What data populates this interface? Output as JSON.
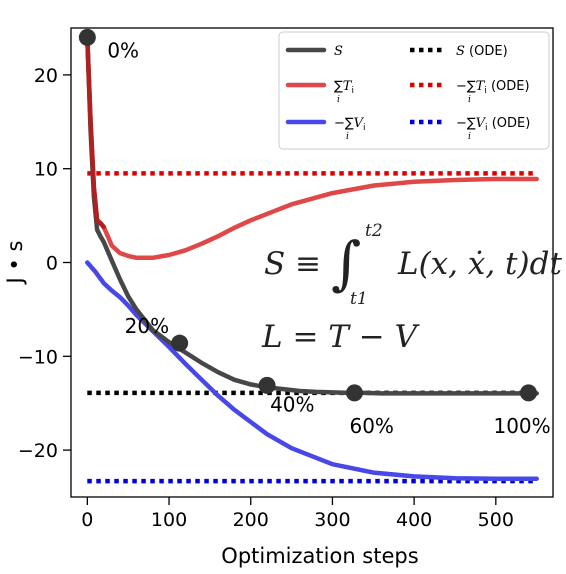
{
  "chart_data": {
    "type": "line",
    "xlabel": "Optimization steps",
    "ylabel": "J • s",
    "xlim": [
      -20,
      570
    ],
    "ylim": [
      -25,
      25
    ],
    "xticks": [
      0,
      100,
      200,
      300,
      400,
      500
    ],
    "yticks": [
      -20,
      -10,
      0,
      10,
      20
    ],
    "xtick_labels": [
      "0",
      "100",
      "200",
      "300",
      "400",
      "500"
    ],
    "ytick_labels": [
      "−20",
      "−10",
      "0",
      "10",
      "20"
    ],
    "grid": false,
    "legend_position": "top-right",
    "series": [
      {
        "name": "S",
        "color": "#474747",
        "style": "solid",
        "x": [
          0,
          4,
          8,
          12,
          16,
          20,
          30,
          40,
          50,
          60,
          80,
          100,
          120,
          140,
          160,
          180,
          200,
          220,
          240,
          260,
          280,
          300,
          320,
          340,
          360,
          400,
          450,
          500,
          550
        ],
        "y": [
          24.0,
          14.0,
          7.0,
          3.5,
          2.8,
          2.2,
          0.2,
          -1.8,
          -3.6,
          -5.0,
          -7.2,
          -8.5,
          -9.6,
          -10.7,
          -11.7,
          -12.5,
          -13.0,
          -13.3,
          -13.5,
          -13.7,
          -13.8,
          -13.85,
          -13.9,
          -13.9,
          -13.95,
          -13.95,
          -13.95,
          -13.95,
          -13.95
        ]
      },
      {
        "name": "∑i Ti",
        "color": "#e04848",
        "style": "solid",
        "x": [
          0,
          4,
          8,
          12,
          16,
          20,
          25,
          30,
          40,
          50,
          60,
          80,
          100,
          120,
          140,
          160,
          180,
          200,
          250,
          300,
          350,
          400,
          450,
          500,
          550
        ],
        "y": [
          24.0,
          15.0,
          8.0,
          4.5,
          4.2,
          3.8,
          2.8,
          1.8,
          1.0,
          0.7,
          0.5,
          0.5,
          0.8,
          1.3,
          2.0,
          2.8,
          3.7,
          4.5,
          6.2,
          7.4,
          8.2,
          8.6,
          8.8,
          8.9,
          8.9
        ]
      },
      {
        "name": "−∑i Vi",
        "color": "#4848e8",
        "style": "solid",
        "x": [
          0,
          10,
          20,
          30,
          40,
          50,
          60,
          80,
          100,
          120,
          140,
          160,
          180,
          200,
          220,
          250,
          300,
          350,
          400,
          450,
          500,
          550
        ],
        "y": [
          0.0,
          -1.0,
          -2.2,
          -3.0,
          -3.7,
          -4.6,
          -5.6,
          -7.3,
          -9.0,
          -10.8,
          -12.5,
          -14.2,
          -15.7,
          -17.0,
          -18.3,
          -19.8,
          -21.5,
          -22.4,
          -22.8,
          -23.0,
          -23.05,
          -23.05
        ]
      },
      {
        "name": "S (ODE)",
        "color": "#000000",
        "style": "dotted",
        "x": [
          0,
          550
        ],
        "y": [
          -13.9,
          -13.9
        ]
      },
      {
        "name": "−∑i Ti (ODE)",
        "color": "#dd0000",
        "style": "dotted",
        "x": [
          0,
          550
        ],
        "y": [
          9.5,
          9.5
        ]
      },
      {
        "name": "−∑i Vi (ODE)",
        "color": "#0000dd",
        "style": "dotted",
        "x": [
          0,
          550
        ],
        "y": [
          -23.3,
          -23.3
        ]
      }
    ],
    "markers": [
      {
        "label": "0%",
        "x": 0,
        "y": 24.0
      },
      {
        "label": "20%",
        "x": 113,
        "y": -8.6
      },
      {
        "label": "40%",
        "x": 220,
        "y": -13.1
      },
      {
        "label": "60%",
        "x": 327,
        "y": -13.9
      },
      {
        "label": "100%",
        "x": 540,
        "y": -13.9
      }
    ],
    "annotations": {
      "equation_1": "S ≡ ∫ L(x, ẋ, t)dt",
      "equation_1_upper": "t2",
      "equation_1_lower": "t1",
      "equation_2": "L = T − V"
    },
    "legend": {
      "entries": [
        {
          "series": 0,
          "sym": "S",
          "text": ""
        },
        {
          "series": 3,
          "sym": "S",
          "text": " (ODE)"
        },
        {
          "series": 1,
          "sym": "∑Ti",
          "text": ""
        },
        {
          "series": 4,
          "sym": "−∑Ti",
          "text": " (ODE)"
        },
        {
          "series": 2,
          "sym": "−∑Vi",
          "text": ""
        },
        {
          "series": 5,
          "sym": "−∑Vi",
          "text": " (ODE)"
        }
      ],
      "sub_index": "i"
    }
  }
}
